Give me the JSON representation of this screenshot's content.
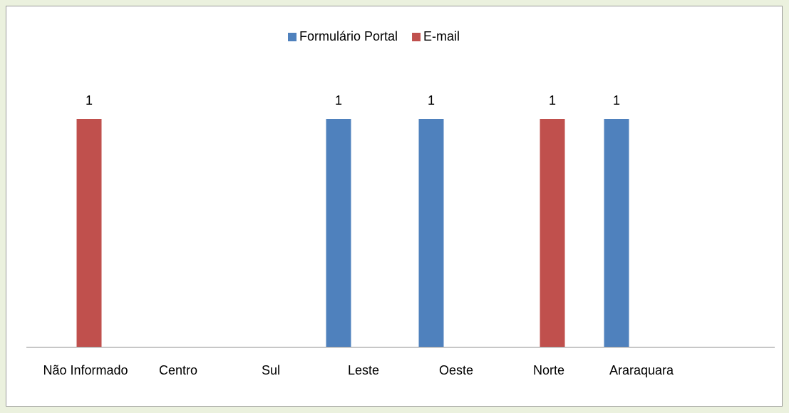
{
  "chart_data": {
    "type": "bar",
    "categories": [
      "Não Informado",
      "Centro",
      "Sul",
      "Leste",
      "Oeste",
      "Norte",
      "Araraquara",
      null
    ],
    "series": [
      {
        "name": "Formulário Portal",
        "color": "#4f81bd",
        "values": [
          null,
          null,
          null,
          1,
          1,
          null,
          1,
          null
        ]
      },
      {
        "name": "E-mail",
        "color": "#c0504d",
        "values": [
          1,
          null,
          null,
          null,
          null,
          1,
          null,
          null
        ]
      }
    ],
    "ylim": [
      0,
      1
    ],
    "legend": "top",
    "data_labels": true
  }
}
